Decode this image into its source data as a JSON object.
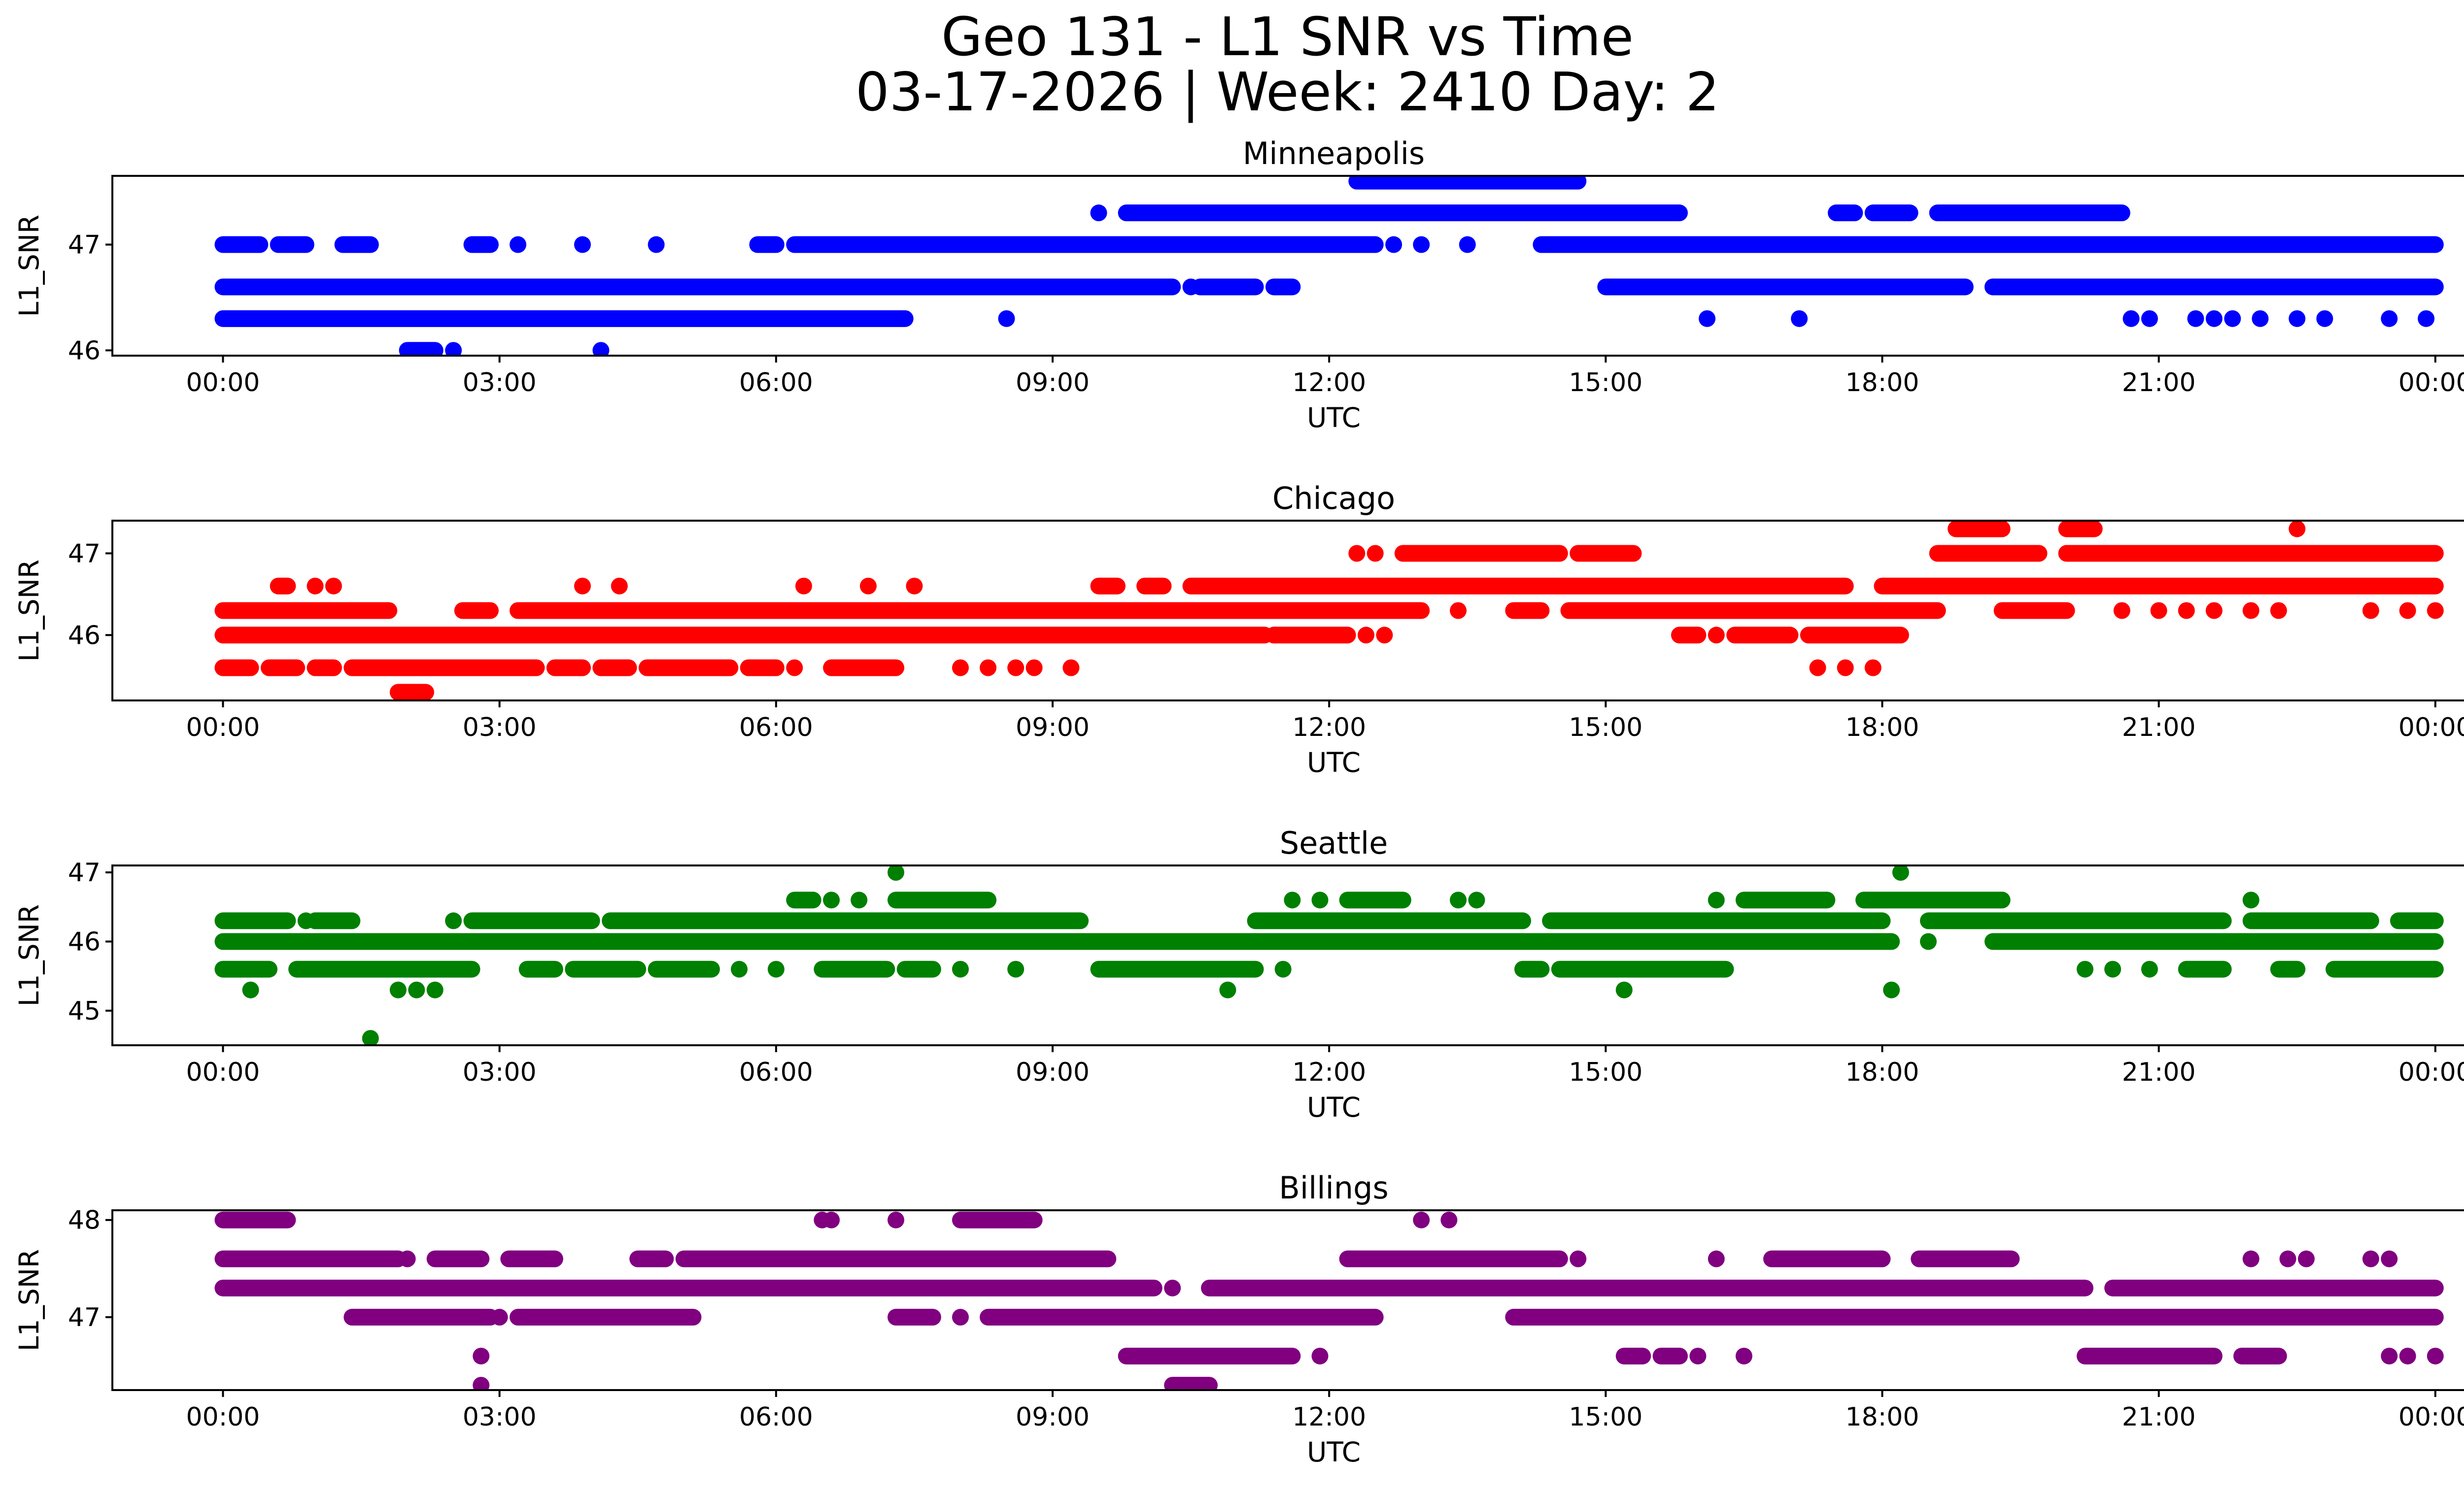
{
  "title": {
    "line1": "Geo 131 - L1 SNR vs Time",
    "line2": "03-17-2026 | Week: 2410 Day: 2"
  },
  "chart_data": [
    {
      "type": "scatter",
      "title": "Minneapolis",
      "color": "#0000ff",
      "xlabel": "UTC",
      "ylabel": "L1_SNR",
      "xlim": [
        -1.2,
        25.3
      ],
      "ylim": [
        45.95,
        47.65
      ],
      "xticks": [
        0,
        3,
        6,
        9,
        12,
        15,
        18,
        21,
        24
      ],
      "xtick_labels": [
        "00:00",
        "03:00",
        "06:00",
        "09:00",
        "12:00",
        "15:00",
        "18:00",
        "21:00",
        "00:00"
      ],
      "yticks": [
        46,
        47
      ],
      "ytick_labels": [
        "46",
        "47"
      ],
      "bands": [
        {
          "y": 47.6,
          "x": [
            [
              12.3,
              14.7
            ]
          ]
        },
        {
          "y": 47.3,
          "x": [
            [
              9.8,
              15.8
            ],
            [
              17.5,
              17.7
            ],
            [
              17.9,
              18.3
            ],
            [
              18.6,
              20.6
            ]
          ],
          "pts": [
            9.5
          ]
        },
        {
          "y": 47.0,
          "x": [
            [
              0,
              0.4
            ],
            [
              0.6,
              0.9
            ],
            [
              1.3,
              1.6
            ],
            [
              2.7,
              2.9
            ],
            [
              5.8,
              6.0
            ],
            [
              6.2,
              12.5
            ],
            [
              14.3,
              24
            ]
          ],
          "pts": [
            3.2,
            3.9,
            4.7,
            12.7,
            13.0,
            13.5
          ]
        },
        {
          "y": 46.6,
          "x": [
            [
              0,
              10.3
            ],
            [
              10.6,
              11.2
            ],
            [
              11.4,
              11.6
            ],
            [
              15.0,
              18.9
            ],
            [
              19.2,
              24
            ]
          ],
          "pts": [
            10.5
          ]
        },
        {
          "y": 46.3,
          "x": [
            [
              0,
              7.4
            ]
          ],
          "pts": [
            8.5,
            16.1,
            17.1,
            20.7,
            20.9,
            21.4,
            21.6,
            21.8,
            22.1,
            22.5,
            22.8,
            23.5,
            23.9
          ]
        },
        {
          "y": 46.0,
          "x": [
            [
              2.0,
              2.3
            ]
          ],
          "pts": [
            2.5,
            4.1
          ]
        }
      ]
    },
    {
      "type": "scatter",
      "title": "Chicago",
      "color": "#ff0000",
      "xlabel": "UTC",
      "ylabel": "L1_SNR",
      "xlim": [
        -1.2,
        25.3
      ],
      "ylim": [
        45.2,
        47.4
      ],
      "xticks": [
        0,
        3,
        6,
        9,
        12,
        15,
        18,
        21,
        24
      ],
      "xtick_labels": [
        "00:00",
        "03:00",
        "06:00",
        "09:00",
        "12:00",
        "15:00",
        "18:00",
        "21:00",
        "00:00"
      ],
      "yticks": [
        46,
        47
      ],
      "ytick_labels": [
        "46",
        "47"
      ],
      "bands": [
        {
          "y": 47.3,
          "x": [
            [
              18.8,
              19.3
            ],
            [
              20.0,
              20.3
            ]
          ],
          "pts": [
            22.5
          ]
        },
        {
          "y": 47.0,
          "x": [
            [
              12.8,
              14.5
            ],
            [
              14.7,
              15.3
            ],
            [
              18.6,
              19.7
            ],
            [
              20.0,
              24
            ]
          ],
          "pts": [
            12.3,
            12.5
          ]
        },
        {
          "y": 46.6,
          "x": [
            [
              0.6,
              0.7
            ],
            [
              9.5,
              9.7
            ],
            [
              10.0,
              10.2
            ],
            [
              10.5,
              17.6
            ],
            [
              18.0,
              24
            ]
          ],
          "pts": [
            1.0,
            1.2,
            3.9,
            4.3,
            6.3,
            7.0,
            7.5
          ]
        },
        {
          "y": 46.3,
          "x": [
            [
              0,
              1.8
            ],
            [
              2.6,
              2.9
            ],
            [
              3.2,
              13.0
            ],
            [
              14.0,
              14.3
            ],
            [
              14.6,
              18.6
            ],
            [
              19.3,
              20.0
            ]
          ],
          "pts": [
            13.4,
            20.6,
            21.0,
            21.3,
            21.6,
            22.0,
            22.3,
            23.3,
            23.7,
            24.0
          ]
        },
        {
          "y": 46.0,
          "x": [
            [
              0,
              11.3
            ],
            [
              11.4,
              12.2
            ],
            [
              15.8,
              16.0
            ],
            [
              16.4,
              17.0
            ],
            [
              17.2,
              18.2
            ]
          ],
          "pts": [
            12.4,
            12.6,
            16.2
          ]
        },
        {
          "y": 45.6,
          "x": [
            [
              0,
              0.3
            ],
            [
              0.5,
              0.8
            ],
            [
              1.0,
              1.2
            ],
            [
              1.4,
              3.4
            ],
            [
              3.6,
              3.9
            ],
            [
              4.1,
              4.4
            ],
            [
              4.6,
              5.5
            ],
            [
              5.7,
              6.0
            ],
            [
              6.6,
              7.3
            ]
          ],
          "pts": [
            6.2,
            8.0,
            8.3,
            8.6,
            8.8,
            9.2,
            17.3,
            17.6,
            17.9
          ]
        },
        {
          "y": 45.3,
          "x": [
            [
              1.9,
              2.2
            ]
          ]
        }
      ]
    },
    {
      "type": "scatter",
      "title": "Seattle",
      "color": "#008000",
      "xlabel": "UTC",
      "ylabel": "L1_SNR",
      "xlim": [
        -1.2,
        25.3
      ],
      "ylim": [
        44.5,
        47.1
      ],
      "xticks": [
        0,
        3,
        6,
        9,
        12,
        15,
        18,
        21,
        24
      ],
      "xtick_labels": [
        "00:00",
        "03:00",
        "06:00",
        "09:00",
        "12:00",
        "15:00",
        "18:00",
        "21:00",
        "00:00"
      ],
      "yticks": [
        45,
        46,
        47
      ],
      "ytick_labels": [
        "45",
        "46",
        "47"
      ],
      "bands": [
        {
          "y": 47.0,
          "pts": [
            7.3,
            18.2
          ]
        },
        {
          "y": 46.6,
          "x": [
            [
              6.2,
              6.4
            ],
            [
              7.3,
              8.3
            ],
            [
              12.2,
              12.8
            ],
            [
              16.5,
              17.4
            ],
            [
              17.8,
              19.3
            ]
          ],
          "pts": [
            6.6,
            6.9,
            11.6,
            11.9,
            13.4,
            13.6,
            16.2,
            22.0
          ]
        },
        {
          "y": 46.3,
          "x": [
            [
              0,
              0.7
            ],
            [
              1.0,
              1.4
            ],
            [
              2.7,
              4.0
            ],
            [
              4.2,
              9.3
            ],
            [
              11.2,
              14.1
            ],
            [
              14.4,
              18.0
            ],
            [
              18.5,
              21.7
            ],
            [
              22.0,
              23.3
            ],
            [
              23.6,
              24
            ]
          ],
          "pts": [
            0.9,
            2.5
          ]
        },
        {
          "y": 46.0,
          "x": [
            [
              0,
              18.1
            ],
            [
              19.2,
              24
            ]
          ],
          "pts": [
            18.5
          ]
        },
        {
          "y": 45.6,
          "x": [
            [
              0,
              0.5
            ],
            [
              0.8,
              2.7
            ],
            [
              3.3,
              3.6
            ],
            [
              3.8,
              4.5
            ],
            [
              4.7,
              5.3
            ],
            [
              6.5,
              7.2
            ],
            [
              7.4,
              7.7
            ],
            [
              9.5,
              11.2
            ],
            [
              14.1,
              14.3
            ],
            [
              14.5,
              16.3
            ],
            [
              21.3,
              21.7
            ],
            [
              22.3,
              22.5
            ],
            [
              22.9,
              24
            ]
          ],
          "pts": [
            5.6,
            6.0,
            8.0,
            8.6,
            11.5,
            20.2,
            20.5,
            20.9
          ]
        },
        {
          "y": 45.3,
          "pts": [
            0.3,
            1.9,
            2.1,
            2.3,
            10.9,
            15.2,
            18.1
          ]
        },
        {
          "y": 44.6,
          "pts": [
            1.6
          ]
        }
      ]
    },
    {
      "type": "scatter",
      "title": "Billings",
      "color": "#800080",
      "xlabel": "UTC",
      "ylabel": "L1_SNR",
      "xlim": [
        -1.2,
        25.3
      ],
      "ylim": [
        46.25,
        48.1
      ],
      "xticks": [
        0,
        3,
        6,
        9,
        12,
        15,
        18,
        21,
        24
      ],
      "xtick_labels": [
        "00:00",
        "03:00",
        "06:00",
        "09:00",
        "12:00",
        "15:00",
        "18:00",
        "21:00",
        "00:00"
      ],
      "yticks": [
        47,
        48
      ],
      "ytick_labels": [
        "47",
        "48"
      ],
      "bands": [
        {
          "y": 48.0,
          "x": [
            [
              0,
              0.7
            ],
            [
              8.0,
              8.8
            ]
          ],
          "pts": [
            6.5,
            6.6,
            7.3,
            13.0,
            13.3
          ]
        },
        {
          "y": 47.6,
          "x": [
            [
              0,
              1.9
            ],
            [
              2.3,
              2.8
            ],
            [
              3.1,
              3.6
            ],
            [
              4.5,
              4.8
            ],
            [
              5.0,
              9.6
            ],
            [
              12.2,
              14.5
            ],
            [
              16.8,
              18.0
            ],
            [
              18.4,
              19.4
            ]
          ],
          "pts": [
            2.0,
            14.7,
            16.2,
            22.0,
            22.4,
            22.6,
            23.3,
            23.5
          ]
        },
        {
          "y": 47.3,
          "x": [
            [
              0,
              10.1
            ],
            [
              10.7,
              20.2
            ],
            [
              20.5,
              24
            ]
          ],
          "pts": [
            10.3
          ]
        },
        {
          "y": 47.0,
          "x": [
            [
              1.4,
              2.9
            ],
            [
              3.2,
              5.1
            ],
            [
              7.3,
              7.7
            ],
            [
              8.3,
              12.5
            ],
            [
              14.0,
              24
            ]
          ],
          "pts": [
            3.0,
            8.0
          ]
        },
        {
          "y": 46.6,
          "x": [
            [
              9.8,
              11.6
            ],
            [
              15.2,
              15.4
            ],
            [
              15.6,
              15.8
            ],
            [
              20.2,
              21.6
            ],
            [
              21.9,
              22.3
            ]
          ],
          "pts": [
            2.8,
            11.9,
            16.0,
            16.5,
            23.5,
            23.7,
            24.0
          ]
        },
        {
          "y": 46.3,
          "x": [
            [
              10.3,
              10.7
            ]
          ],
          "pts": [
            2.8
          ]
        }
      ]
    }
  ]
}
